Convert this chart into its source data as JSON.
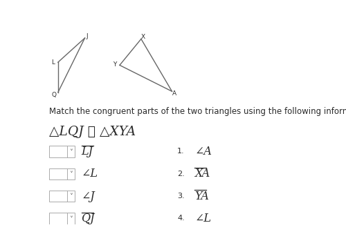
{
  "bg_color": "#ffffff",
  "tri1": {
    "L": [
      0.055,
      0.835
    ],
    "J": [
      0.155,
      0.96
    ],
    "Q": [
      0.055,
      0.68
    ]
  },
  "tri2": {
    "X": [
      0.365,
      0.955
    ],
    "Y": [
      0.285,
      0.82
    ],
    "A": [
      0.48,
      0.685
    ]
  },
  "instruction_text": "Match the congruent parts of the two triangles using the following information:",
  "congruence_line1": "△LQJ ≅ △XYA",
  "rows": [
    {
      "left_item": "LJ",
      "left_overline": true,
      "right_num": "1.",
      "right_item": "∠A",
      "right_overline": false
    },
    {
      "left_item": "∠L",
      "left_overline": false,
      "right_num": "2.",
      "right_item": "XA",
      "right_overline": true
    },
    {
      "left_item": "∠J",
      "left_overline": false,
      "right_num": "3.",
      "right_item": "YA",
      "right_overline": true
    },
    {
      "left_item": "QJ",
      "left_overline": true,
      "right_num": "4.",
      "right_item": "∠L",
      "right_overline": false
    }
  ],
  "text_color": "#2a2a2a",
  "tri_color": "#666666",
  "box_edge_color": "#aaaaaa",
  "font_size_body": 8.5,
  "font_size_items": 11.5,
  "font_size_congruence": 13.5,
  "font_size_label": 6.5
}
